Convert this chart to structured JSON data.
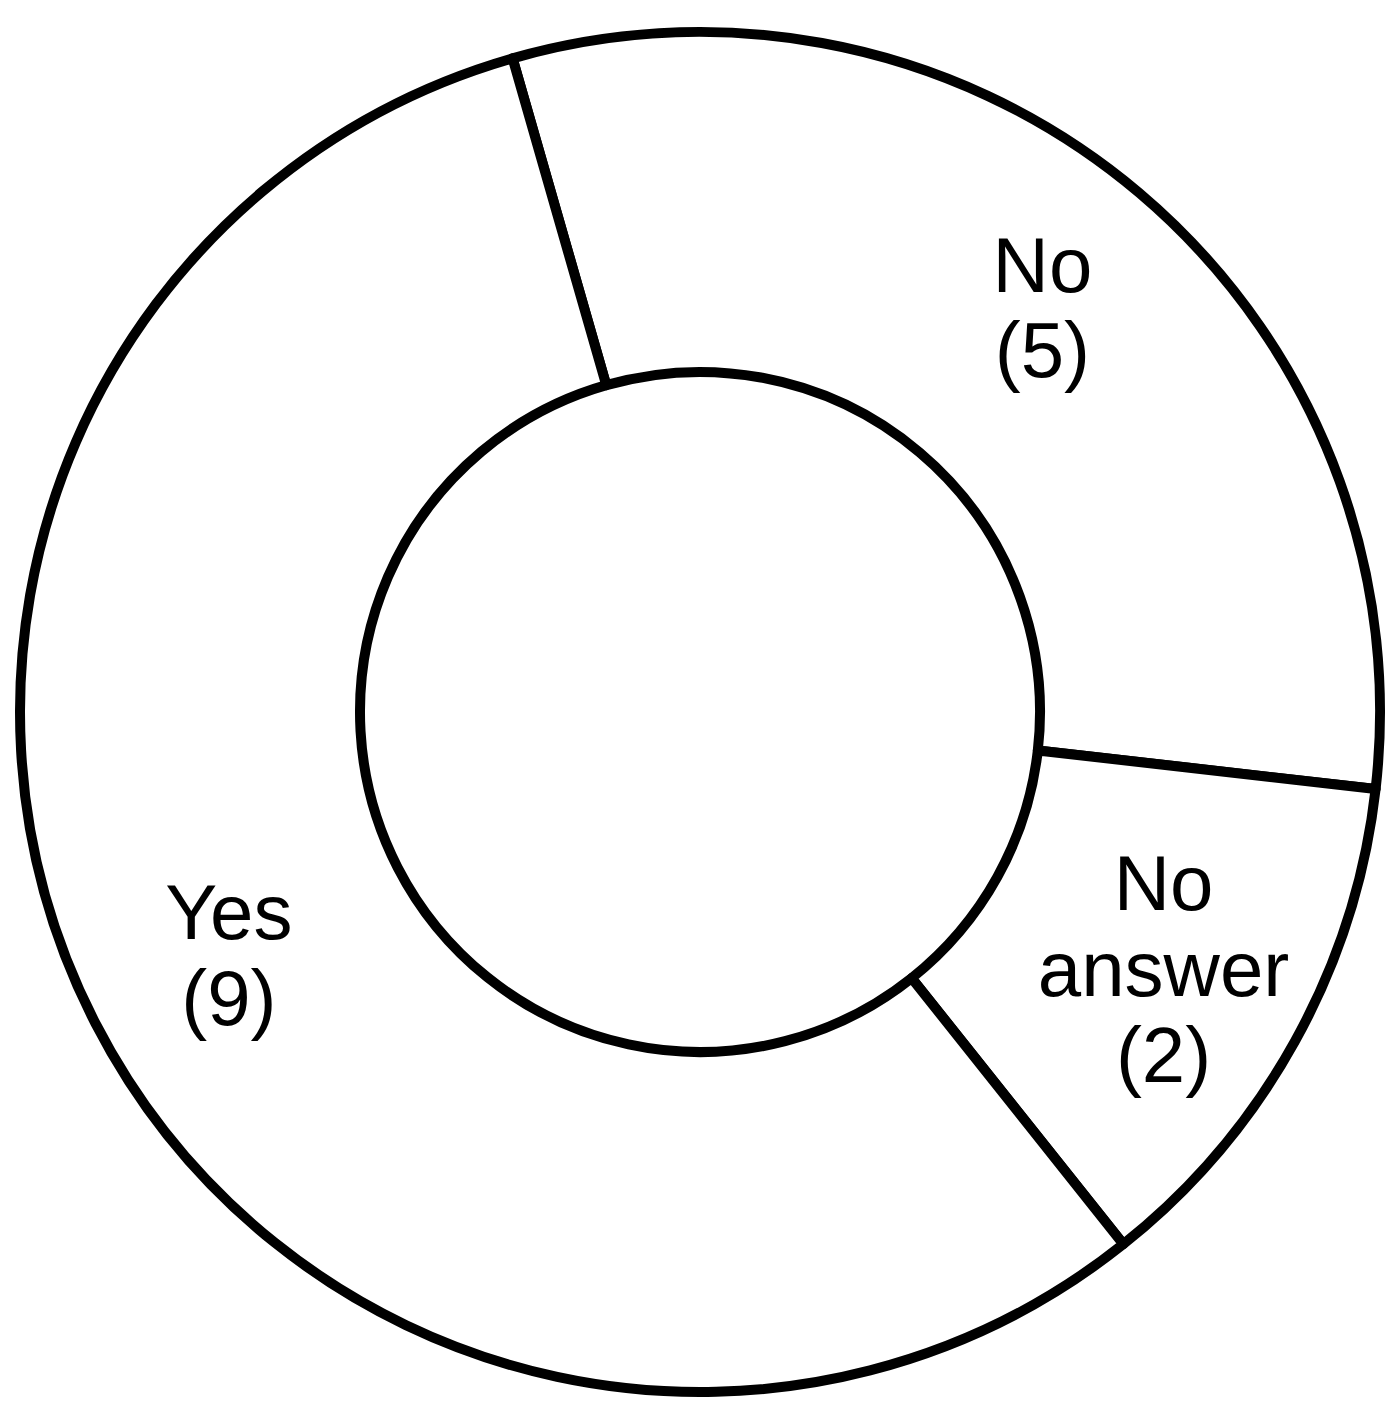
{
  "chart_data": {
    "type": "donut",
    "categories": [
      "No",
      "No answer",
      "Yes"
    ],
    "values": [
      5,
      2,
      9
    ],
    "colors": [
      "#ffffff",
      "#ffffff",
      "#ffffff"
    ],
    "value_labels": [
      "(5)",
      "(2)",
      "(9)"
    ]
  }
}
